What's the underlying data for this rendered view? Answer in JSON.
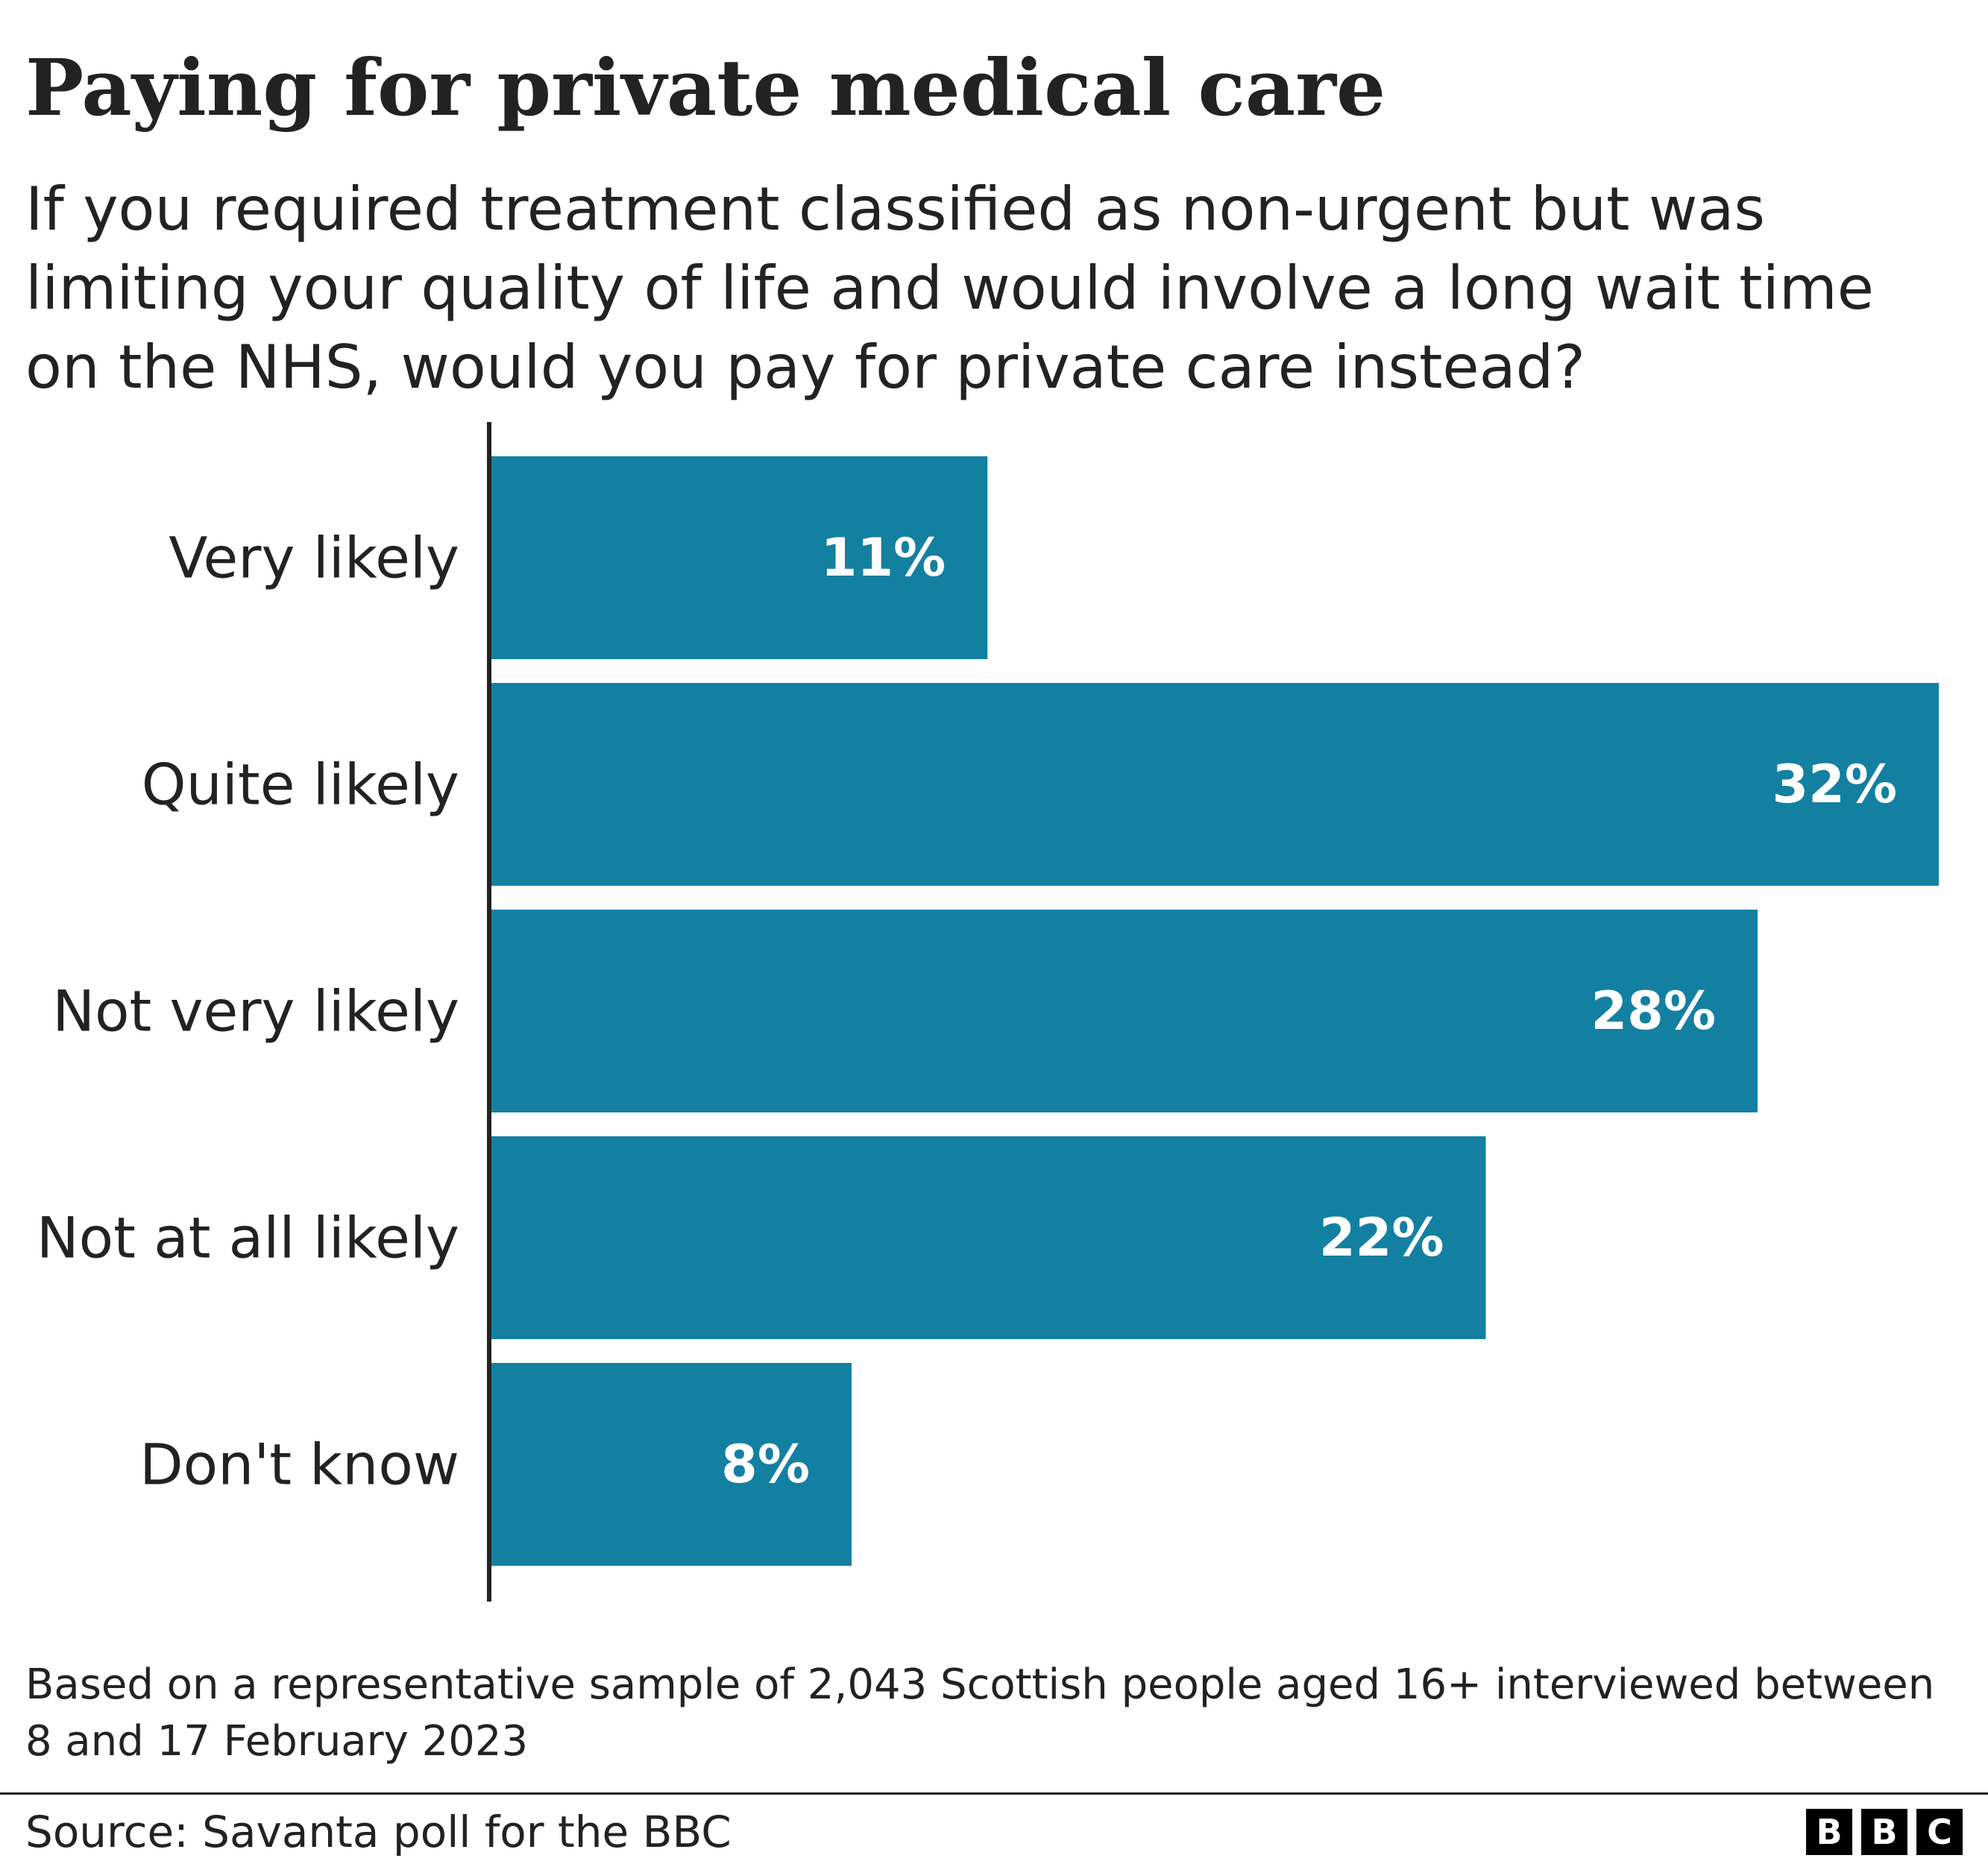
{
  "chart_data": {
    "type": "bar",
    "orientation": "horizontal",
    "title": "Paying for private medical care",
    "subtitle": "If you required treatment classified as non-urgent but was limiting your quality of life and would involve a long wait time on the NHS, would you pay for private care instead?",
    "categories": [
      "Very likely",
      "Quite likely",
      "Not very likely",
      "Not at all likely",
      "Don't know"
    ],
    "values": [
      11,
      32,
      28,
      22,
      8
    ],
    "value_labels": [
      "11%",
      "32%",
      "28%",
      "22%",
      "8%"
    ],
    "unit": "%",
    "xlim": [
      0,
      32
    ],
    "grid": false,
    "legend": "none",
    "bar_color": "#1380A1"
  },
  "note": "Based on a representative sample of 2,043 Scottish people aged 16+ interviewed between 8 and 17 February 2023",
  "source": "Source: Savanta poll for the BBC",
  "logo": {
    "letters": [
      "B",
      "B",
      "C"
    ]
  },
  "colors": {
    "bar": "#1380A1",
    "text": "#222222",
    "axis": "#222222"
  }
}
